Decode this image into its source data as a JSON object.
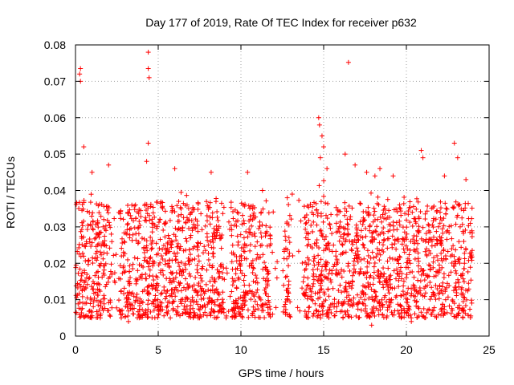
{
  "chart_data": {
    "type": "scatter",
    "title": "Day 177 of 2019, Rate Of TEC Index for receiver p632",
    "xlabel": "GPS time / hours",
    "ylabel": "ROTI / TECUs",
    "xlim": [
      0,
      25
    ],
    "ylim": [
      0,
      0.08
    ],
    "x_ticks": [
      "0",
      "5",
      "10",
      "15",
      "20",
      "25"
    ],
    "y_ticks": [
      "0",
      "0.01",
      "0.02",
      "0.03",
      "0.04",
      "0.05",
      "0.06",
      "0.07",
      "0.08"
    ],
    "grid": true,
    "marker": "+",
    "marker_color": "#ff0000",
    "series": [
      {
        "points": [
          [
            0.25,
            0.072
          ],
          [
            0.3,
            0.0735
          ],
          [
            0.3,
            0.07
          ],
          [
            4.4,
            0.078
          ],
          [
            4.4,
            0.0735
          ],
          [
            4.45,
            0.071
          ],
          [
            16.5,
            0.0752
          ],
          [
            14.7,
            0.06
          ],
          [
            14.75,
            0.058
          ],
          [
            14.9,
            0.055
          ],
          [
            15.0,
            0.052
          ],
          [
            16.3,
            0.05
          ],
          [
            4.4,
            0.053
          ],
          [
            20.9,
            0.051
          ],
          [
            22.9,
            0.053
          ],
          [
            0.5,
            0.052
          ],
          [
            1.0,
            0.045
          ],
          [
            2.0,
            0.047
          ],
          [
            8.2,
            0.045
          ],
          [
            10.4,
            0.045
          ],
          [
            4.3,
            0.048
          ],
          [
            14.8,
            0.049
          ],
          [
            18.1,
            0.044
          ],
          [
            21.0,
            0.049
          ],
          [
            23.1,
            0.049
          ],
          [
            22.3,
            0.044
          ],
          [
            6.0,
            0.046
          ],
          [
            16.9,
            0.047
          ],
          [
            17.6,
            0.045
          ],
          [
            18.4,
            0.046
          ],
          [
            19.2,
            0.044
          ],
          [
            23.6,
            0.043
          ],
          [
            15.2,
            0.046
          ],
          [
            12.7,
            0.006
          ],
          [
            3.2,
            0.004
          ],
          [
            17.9,
            0.003
          ],
          [
            20.3,
            0.004
          ],
          [
            9.1,
            0.005
          ],
          [
            13.1,
            0.039
          ],
          [
            11.3,
            0.04
          ],
          [
            12.8,
            0.038
          ],
          [
            1.5,
            0.005
          ],
          [
            7.5,
            0.005
          ]
        ]
      }
    ]
  }
}
